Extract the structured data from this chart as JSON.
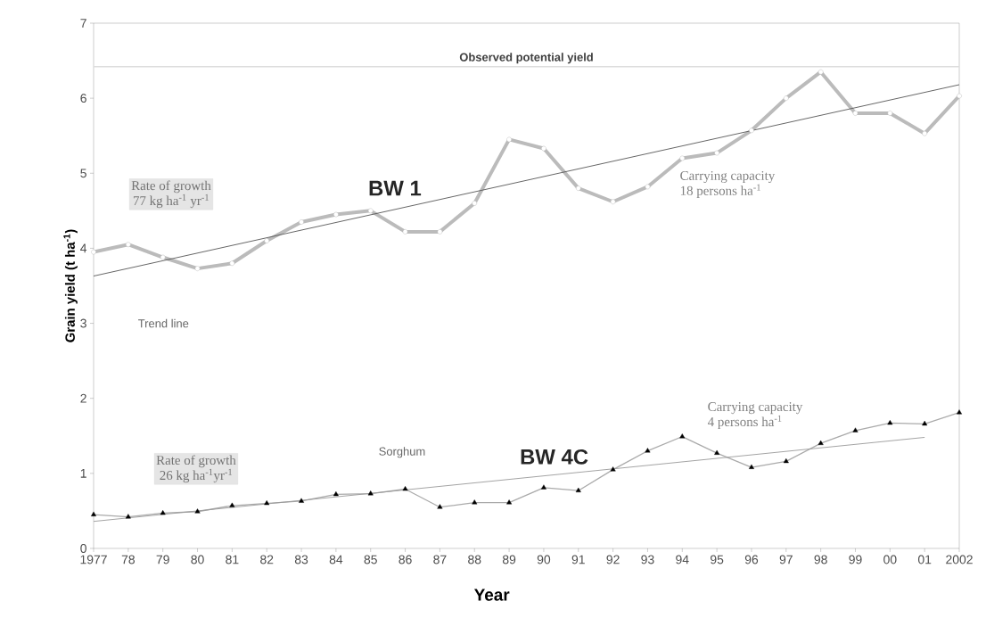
{
  "chart_data": {
    "type": "line",
    "xlabel": "Year",
    "ylabel": "Grain yield (t ha$^{-1}$)",
    "categories": [
      "1977",
      "78",
      "79",
      "80",
      "81",
      "82",
      "83",
      "84",
      "85",
      "86",
      "87",
      "88",
      "89",
      "90",
      "91",
      "92",
      "93",
      "94",
      "95",
      "96",
      "97",
      "98",
      "99",
      "00",
      "01",
      "2002"
    ],
    "series": [
      {
        "name": "BW 1",
        "color": "#bbbbbb",
        "marker": "circle",
        "values": [
          3.95,
          4.05,
          3.88,
          3.73,
          3.8,
          4.1,
          4.35,
          4.45,
          4.5,
          4.22,
          4.22,
          4.6,
          5.45,
          5.33,
          4.8,
          4.62,
          4.82,
          5.2,
          5.27,
          5.57,
          6.0,
          6.35,
          5.8,
          5.8,
          5.53,
          6.03
        ]
      },
      {
        "name": "BW 4C",
        "color": "#aaaaaa",
        "marker": "triangle",
        "values": [
          0.45,
          0.42,
          0.47,
          0.49,
          0.57,
          0.6,
          0.63,
          0.72,
          0.73,
          0.79,
          0.55,
          0.61,
          0.61,
          0.81,
          0.77,
          1.05,
          1.3,
          1.49,
          1.27,
          1.08,
          1.16,
          1.4,
          1.57,
          1.67,
          1.66,
          1.81
        ]
      },
      {
        "color": "#555555",
        "marker": "none",
        "values": [
          3.63,
          null,
          null,
          null,
          null,
          null,
          null,
          null,
          null,
          null,
          null,
          null,
          null,
          null,
          null,
          null,
          null,
          null,
          null,
          null,
          null,
          null,
          null,
          null,
          null,
          6.18
        ]
      },
      {
        "color": "#999999",
        "marker": "none",
        "values": [
          0.36,
          null,
          null,
          null,
          null,
          null,
          null,
          null,
          null,
          null,
          null,
          null,
          null,
          null,
          null,
          null,
          null,
          null,
          null,
          null,
          null,
          null,
          null,
          null,
          1.48,
          null
        ]
      }
    ],
    "ylim": [
      0,
      7
    ],
    "yticks": [
      0,
      1,
      2,
      3,
      4,
      5,
      6,
      7
    ],
    "ref_lines": [
      {
        "axis": "y",
        "value": 6.42,
        "label": "Observed potential yield",
        "color": "#dddddd"
      }
    ],
    "annotations": [
      "Rate of growth",
      "77 kg ha$^{-1}$ yr$^{-1}$",
      "Carrying capacity",
      "18 persons ha$^{-1}$",
      "Trend line",
      "Rate of growth",
      "26 kg ha$^{-1}$yr$^{-1}$",
      "Sorghum",
      "Carrying capacity",
      "4 persons ha$^{-1}$"
    ],
    "grid": false
  }
}
